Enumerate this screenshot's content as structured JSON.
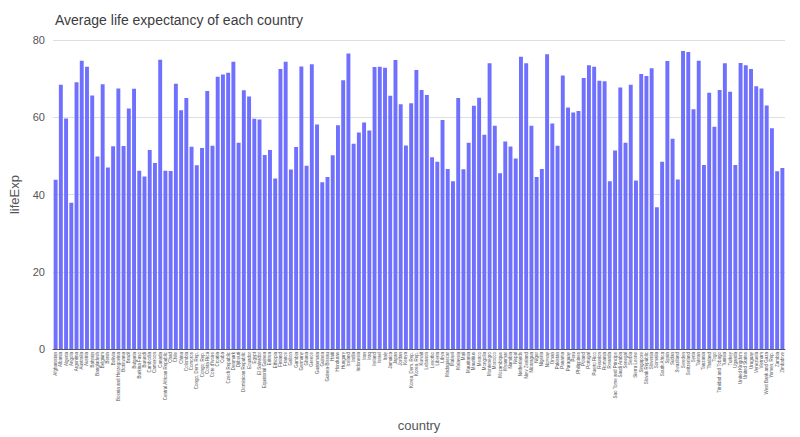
{
  "chart_data": {
    "type": "bar",
    "title": "Average life expectancy of each country",
    "xlabel": "country",
    "ylabel": "lifeExp",
    "color": "#7070ff",
    "ylim": [
      0,
      80
    ],
    "yticks": [
      0,
      20,
      40,
      60,
      80
    ],
    "grid": true,
    "categories": [
      "Afghanistan",
      "Albania",
      "Algeria",
      "Angola",
      "Argentina",
      "Australia",
      "Austria",
      "Bahrain",
      "Bangladesh",
      "Belgium",
      "Benin",
      "Bolivia",
      "Bosnia and Herzegovina",
      "Botswana",
      "Brazil",
      "Bulgaria",
      "Burkina Faso",
      "Burundi",
      "Cambodia",
      "Cameroon",
      "Canada",
      "Central African Republic",
      "Chad",
      "Chile",
      "China",
      "Colombia",
      "Comoros",
      "Congo, Dem. Rep.",
      "Congo, Rep.",
      "Costa Rica",
      "Cote d'Ivoire",
      "Croatia",
      "Cuba",
      "Czech Republic",
      "Denmark",
      "Djibouti",
      "Dominican Republic",
      "Ecuador",
      "Egypt",
      "El Salvador",
      "Equatorial Guinea",
      "Eritrea",
      "Ethiopia",
      "Finland",
      "France",
      "Gabon",
      "Gambia",
      "Germany",
      "Ghana",
      "Greece",
      "Guatemala",
      "Guinea",
      "Guinea-Bissau",
      "Haiti",
      "Honduras",
      "Hungary",
      "Iceland",
      "India",
      "Indonesia",
      "Iran",
      "Iraq",
      "Ireland",
      "Israel",
      "Italy",
      "Jamaica",
      "Japan",
      "Jordan",
      "Kenya",
      "Korea, Dem. Rep.",
      "Korea, Rep.",
      "Kuwait",
      "Lebanon",
      "Lesotho",
      "Liberia",
      "Libya",
      "Madagascar",
      "Malawi",
      "Malaysia",
      "Mali",
      "Mauritania",
      "Mauritius",
      "Mexico",
      "Mongolia",
      "Montenegro",
      "Morocco",
      "Mozambique",
      "Myanmar",
      "Namibia",
      "Nepal",
      "Netherlands",
      "New Zealand",
      "Nicaragua",
      "Niger",
      "Nigeria",
      "Norway",
      "Oman",
      "Pakistan",
      "Panama",
      "Paraguay",
      "Peru",
      "Philippines",
      "Poland",
      "Portugal",
      "Puerto Rico",
      "Reunion",
      "Romania",
      "Rwanda",
      "Sao Tome and Principe",
      "Saudi Arabia",
      "Senegal",
      "Serbia",
      "Sierra Leone",
      "Singapore",
      "Slovak Republic",
      "Slovenia",
      "Somalia",
      "South Africa",
      "Spain",
      "Sudan",
      "Swaziland",
      "Sweden",
      "Switzerland",
      "Syria",
      "Taiwan",
      "Tanzania",
      "Thailand",
      "Togo",
      "Trinidad and Tobago",
      "Tunisia",
      "Turkey",
      "Uganda",
      "United Kingdom",
      "United States",
      "Uruguay",
      "Venezuela",
      "Vietnam",
      "West Bank and Gaza",
      "Yemen, Rep.",
      "Zambia",
      "Zimbabwe"
    ],
    "values": [
      43.83,
      68.43,
      59.69,
      37.88,
      69.06,
      74.66,
      73.1,
      65.61,
      49.83,
      68.56,
      47.01,
      52.5,
      67.45,
      52.56,
      62.24,
      67.41,
      46.13,
      44.69,
      51.54,
      48.13,
      74.91,
      46.18,
      46.07,
      68.66,
      61.84,
      64.96,
      52.38,
      47.58,
      52.05,
      66.8,
      52.63,
      70.46,
      71.04,
      71.51,
      74.37,
      53.37,
      67.0,
      65.39,
      59.6,
      59.41,
      50.24,
      51.53,
      44.14,
      72.52,
      74.35,
      46.45,
      52.33,
      73.13,
      47.45,
      73.73,
      58.14,
      43.15,
      44.5,
      50.17,
      57.95,
      69.59,
      76.51,
      53.17,
      56.02,
      58.64,
      56.58,
      73.02,
      73.1,
      72.84,
      65.56,
      74.83,
      63.38,
      52.68,
      63.61,
      72.21,
      67.03,
      65.74,
      49.62,
      48.49,
      59.3,
      46.62,
      43.43,
      64.96,
      46.53,
      53.38,
      62.95,
      65.03,
      55.49,
      74.0,
      57.77,
      45.47,
      53.72,
      52.4,
      49.34,
      75.64,
      73.99,
      57.79,
      44.56,
      46.61,
      76.32,
      58.38,
      52.65,
      70.78,
      62.52,
      61.24,
      61.6,
      70.18,
      73.44,
      73.06,
      69.44,
      69.32,
      43.41,
      51.41,
      67.68,
      53.37,
      68.44,
      43.61,
      71.22,
      70.69,
      72.68,
      36.68,
      48.46,
      74.54,
      54.41,
      43.87,
      77.18,
      76.92,
      62.06,
      74.65,
      47.62,
      66.32,
      57.56,
      67.07,
      73.99,
      66.6,
      47.61,
      74.02,
      73.47,
      72.49,
      68.01,
      67.47,
      63.05,
      57.17,
      46.0,
      46.84
    ]
  }
}
